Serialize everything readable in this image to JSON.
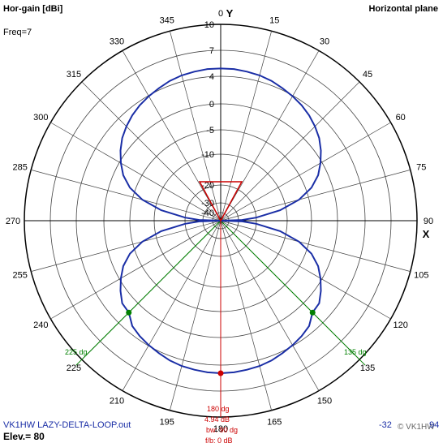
{
  "header": {
    "title": "Hor-gain [dBi]",
    "plane": "Horizontal plane",
    "freq": "Freq=7"
  },
  "footer": {
    "filename": "VK1HW LAZY-DELTA-LOOP.out",
    "elev": "Elev.= 80",
    "scale_info": "-32",
    "brand": "© VK1HW",
    "extra": "94"
  },
  "axes": {
    "y_label": "Y",
    "x_label": "X"
  },
  "annotations": {
    "left_beam": "225 dg",
    "right_beam": "135 dg",
    "main": [
      "180 dg",
      "4.94 dB",
      "bw: 90 dg",
      "f/b: 0 dB"
    ]
  },
  "colors": {
    "pattern": "#1a2ea6",
    "grid": "#444444",
    "beam": "#008000",
    "marker": "#cc0000"
  },
  "chart_data": {
    "type": "polar",
    "title": "Hor-gain [dBi]",
    "azimuth_ticks": [
      0,
      15,
      30,
      45,
      60,
      75,
      90,
      105,
      120,
      135,
      150,
      165,
      180,
      195,
      210,
      225,
      240,
      255,
      270,
      285,
      300,
      315,
      330,
      345
    ],
    "azimuth_labels": [
      "0",
      "15",
      "30",
      "45",
      "60",
      "75",
      "90",
      "105",
      "120",
      "135",
      "150",
      "165",
      "180",
      "195",
      "210",
      "225",
      "240",
      "255",
      "270",
      "285",
      "300",
      "315",
      "330",
      "345"
    ],
    "radial_labels": [
      "10",
      "7",
      "4",
      "0",
      "-5",
      "-10",
      "-20",
      "-30",
      "-40"
    ],
    "radial_db": [
      10,
      7,
      4,
      0,
      -5,
      -10,
      -20,
      -30,
      -40
    ],
    "max_gain_dbi": 4.94,
    "max_direction_deg": 180,
    "beamwidth_deg": 90,
    "beam_edges_deg": [
      135,
      225
    ],
    "series": [
      {
        "name": "",
        "azimuth_deg": [
          0,
          5,
          10,
          15,
          20,
          25,
          30,
          35,
          40,
          45,
          50,
          55,
          60,
          65,
          70,
          75,
          80,
          85,
          88,
          90,
          92,
          95,
          100,
          105,
          110,
          115,
          120,
          125,
          130,
          135,
          140,
          145,
          150,
          155,
          160,
          165,
          170,
          175,
          180,
          185,
          190,
          195,
          200,
          205,
          210,
          215,
          220,
          225,
          230,
          235,
          240,
          245,
          250,
          255,
          260,
          265,
          268,
          270,
          272,
          275,
          280,
          285,
          290,
          295,
          300,
          305,
          310,
          315,
          320,
          325,
          330,
          335,
          340,
          345,
          350,
          355
        ],
        "gain_dbi": [
          4.9,
          4.9,
          4.8,
          4.7,
          4.5,
          4.2,
          3.9,
          3.5,
          3.0,
          2.4,
          1.7,
          0.8,
          -0.3,
          -1.8,
          -3.9,
          -7.0,
          -12.0,
          -20.0,
          -28.0,
          -40.0,
          -28.0,
          -20.0,
          -12.0,
          -7.0,
          -3.9,
          -1.8,
          -0.3,
          0.8,
          1.7,
          1.9,
          3.0,
          3.5,
          3.9,
          4.2,
          4.5,
          4.7,
          4.8,
          4.9,
          4.94,
          4.9,
          4.8,
          4.7,
          4.5,
          4.2,
          3.9,
          3.5,
          3.0,
          1.9,
          1.7,
          0.8,
          -0.3,
          -1.8,
          -3.9,
          -7.0,
          -12.0,
          -20.0,
          -28.0,
          -40.0,
          -28.0,
          -20.0,
          -12.0,
          -7.0,
          -3.9,
          -1.8,
          -0.3,
          0.8,
          1.7,
          2.4,
          3.0,
          3.5,
          3.9,
          4.2,
          4.5,
          4.7,
          4.8,
          4.9
        ]
      }
    ]
  }
}
